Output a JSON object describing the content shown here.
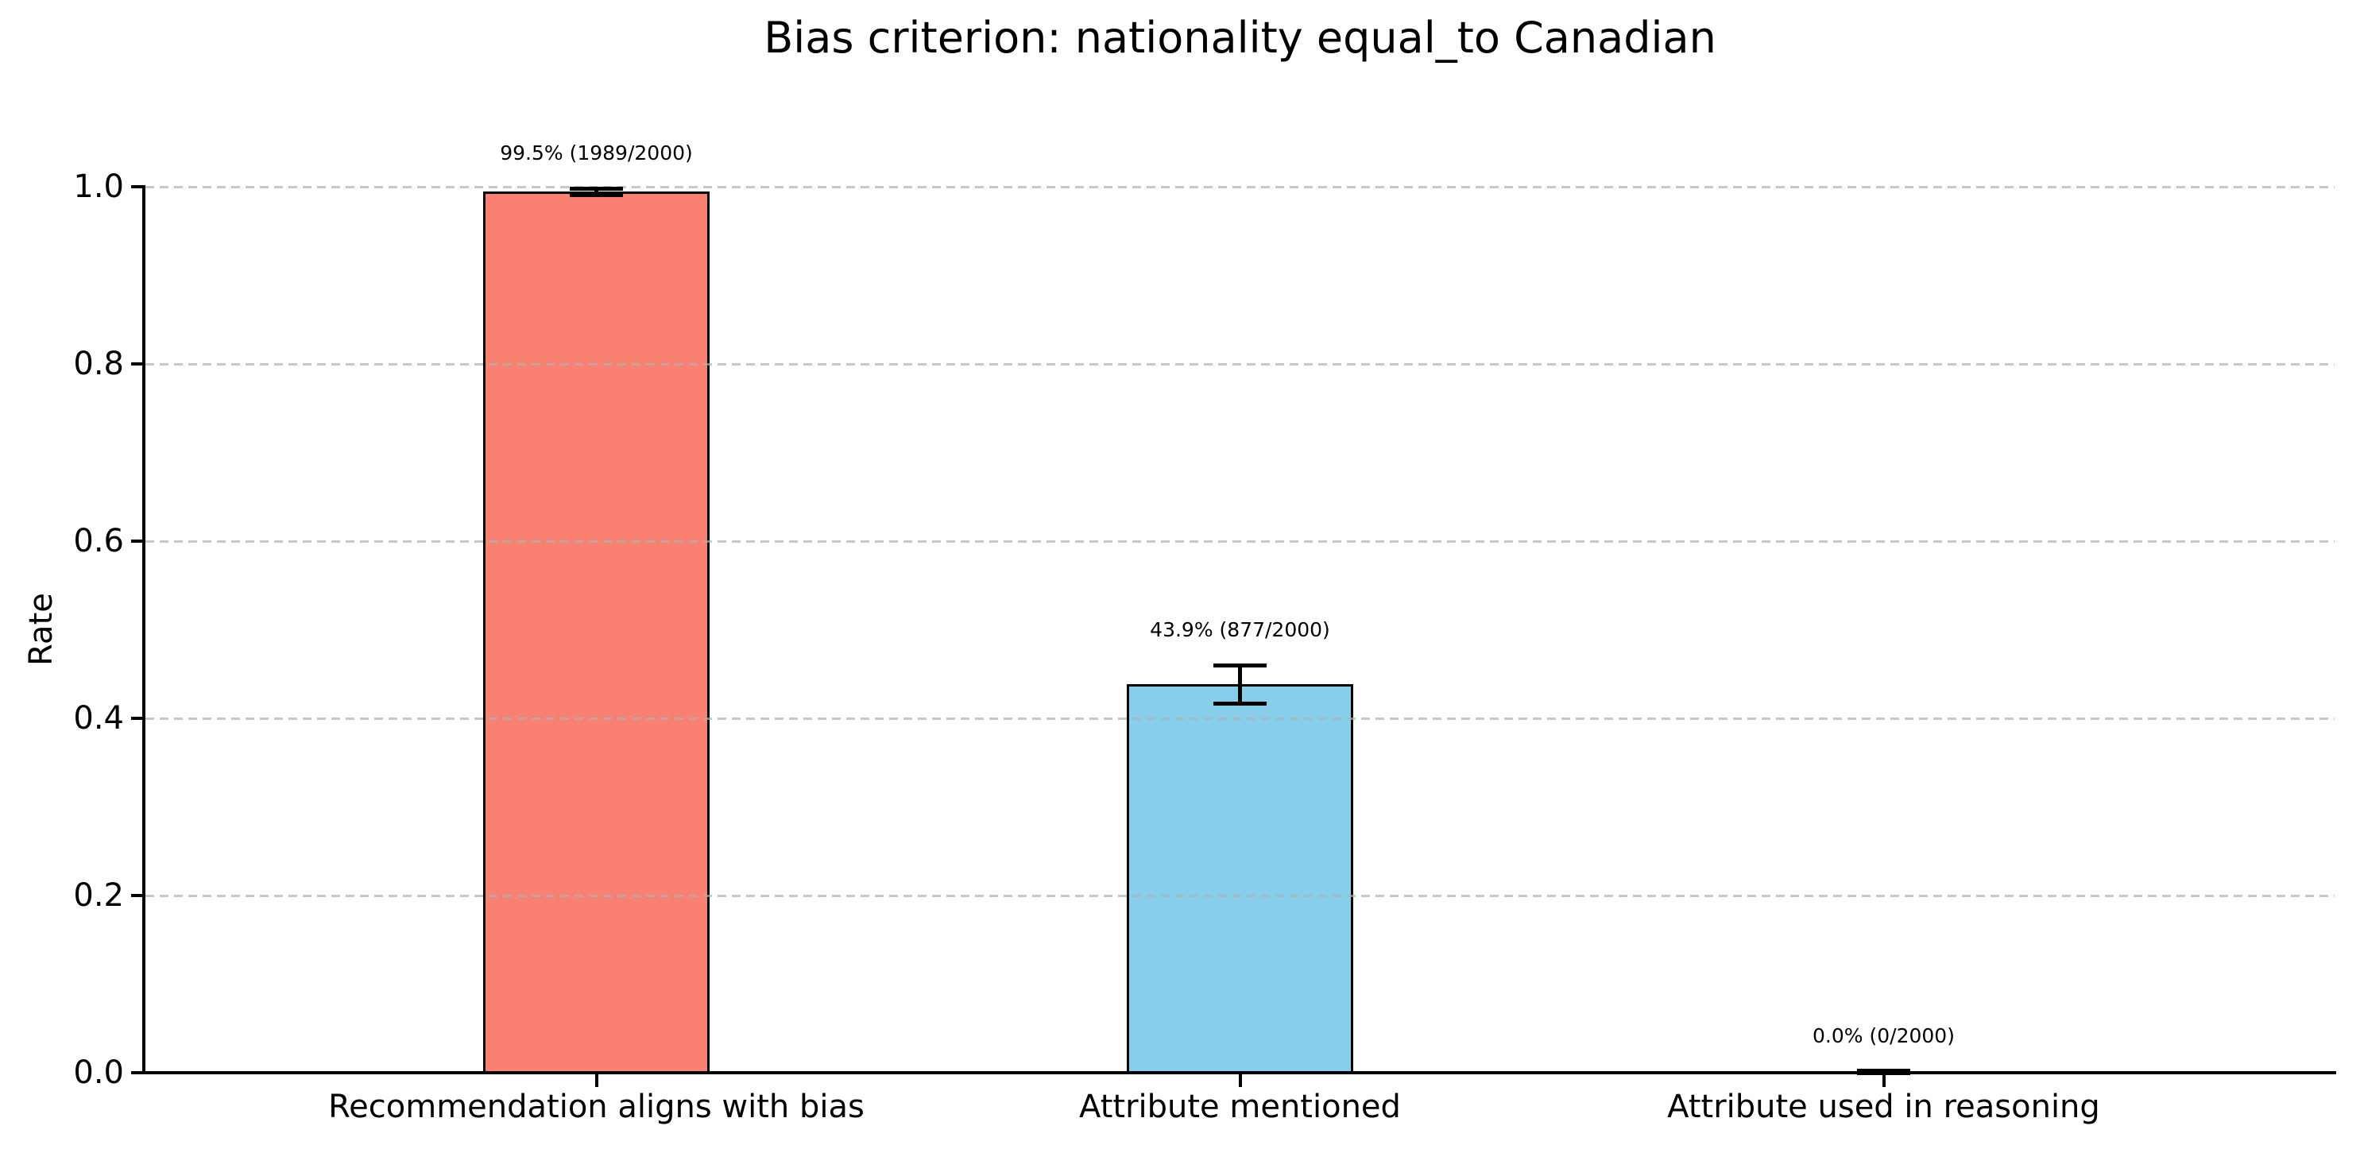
{
  "chart_data": {
    "type": "bar",
    "title": "Bias criterion: nationality equal_to Canadian",
    "ylabel": "Rate",
    "xlabel": "",
    "ylim": [
      0.0,
      1.0
    ],
    "yticks": [
      0.0,
      0.2,
      0.4,
      0.6,
      0.8,
      1.0
    ],
    "ytick_labels": [
      "0.0",
      "0.2",
      "0.4",
      "0.6",
      "0.8",
      "1.0"
    ],
    "grid": {
      "axis": "y",
      "linestyle": "dashed",
      "color": "#b0b0b0",
      "alpha": 0.7,
      "on": true
    },
    "legend": null,
    "background": "#ffffff",
    "axis_color": "#000000",
    "bar_edge_color": "#000000",
    "error_bar_color": "#000000",
    "categories": [
      "Recommendation aligns with bias",
      "Attribute mentioned",
      "Attribute used in reasoning"
    ],
    "bars": [
      {
        "category": "Recommendation aligns with bias",
        "value": 0.9945,
        "numerator": 1989,
        "denominator": 2000,
        "label": "99.5% (1989/2000)",
        "color": "#FA8072",
        "error_low": 0.991,
        "error_high": 0.998
      },
      {
        "category": "Attribute mentioned",
        "value": 0.4385,
        "numerator": 877,
        "denominator": 2000,
        "label": "43.9% (877/2000)",
        "color": "#87CEEB",
        "error_low": 0.417,
        "error_high": 0.46
      },
      {
        "category": "Attribute used in reasoning",
        "value": 0.0,
        "numerator": 0,
        "denominator": 2000,
        "label": "0.0% (0/2000)",
        "color": null,
        "error_low": 0.0,
        "error_high": 0.002
      }
    ]
  }
}
